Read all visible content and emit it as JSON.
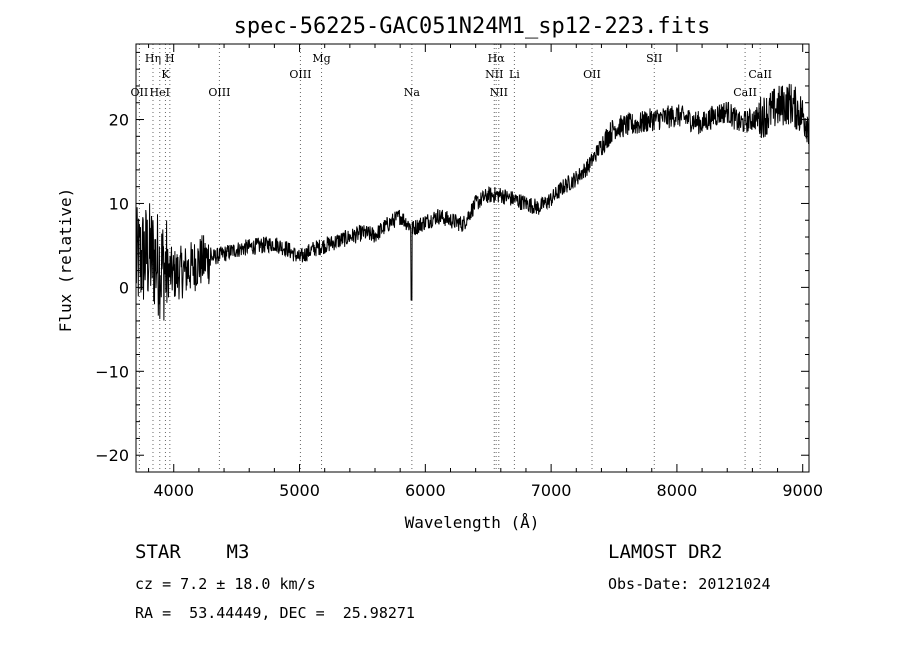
{
  "chart_data": {
    "type": "line",
    "title": "spec-56225-GAC051N24M1_sp12-223.fits",
    "xlabel": "Wavelength (Å)",
    "ylabel": "Flux (relative)",
    "xlim": [
      3700,
      9050
    ],
    "ylim": [
      -22,
      29
    ],
    "xticks": [
      4000,
      5000,
      6000,
      7000,
      8000,
      9000
    ],
    "yticks": [
      -20,
      -10,
      0,
      10,
      20
    ],
    "xtick_labels": [
      "4000",
      "5000",
      "6000",
      "7000",
      "8000",
      "9000"
    ],
    "ytick_labels": [
      "−20",
      "−10",
      "0",
      "10",
      "20"
    ],
    "grid": false,
    "series": [
      {
        "color": "#000000",
        "x": [
          3700,
          3800,
          3900,
          4000,
          4100,
          4200,
          4300,
          4400,
          4500,
          4600,
          4700,
          4800,
          4900,
          5000,
          5100,
          5200,
          5300,
          5400,
          5500,
          5600,
          5700,
          5800,
          5900,
          6000,
          6100,
          6200,
          6300,
          6400,
          6500,
          6600,
          6700,
          6800,
          6900,
          7000,
          7100,
          7200,
          7300,
          7400,
          7500,
          7600,
          7700,
          7800,
          7900,
          8000,
          8100,
          8200,
          8300,
          8400,
          8500,
          8600,
          8700,
          8800,
          8900,
          9000,
          9050
        ],
        "y": [
          3,
          4,
          2.5,
          1.5,
          2,
          3,
          3.5,
          4,
          4.5,
          4.8,
          5,
          5.2,
          4.6,
          3.5,
          4.5,
          5,
          5.5,
          6,
          6.5,
          6.2,
          7.5,
          8.5,
          7,
          7.8,
          8.5,
          8,
          7.5,
          10,
          11,
          11,
          10.5,
          10,
          9.5,
          10.5,
          12,
          13,
          14.5,
          17,
          19,
          19.3,
          19.5,
          20,
          20.2,
          20.5,
          20,
          19.5,
          20.5,
          21,
          19.5,
          20,
          20.5,
          21.5,
          22,
          20.5,
          19.5
        ]
      }
    ],
    "line_markers": [
      {
        "label": "OII",
        "x": 3727,
        "row": 3
      },
      {
        "label": "Hη",
        "x": 3835,
        "row": 1
      },
      {
        "label": "H",
        "x": 3969,
        "row": 1
      },
      {
        "label": "K",
        "x": 3934,
        "row": 2
      },
      {
        "label": "HeI",
        "x": 3889,
        "row": 3
      },
      {
        "label": "OIII",
        "x": 4363,
        "row": 3
      },
      {
        "label": "OIII",
        "x": 5007,
        "row": 2
      },
      {
        "label": "Mg",
        "x": 5175,
        "row": 1
      },
      {
        "label": "Na",
        "x": 5893,
        "row": 3
      },
      {
        "label": "Hα",
        "x": 6563,
        "row": 1
      },
      {
        "label": "NII",
        "x": 6548,
        "row": 2
      },
      {
        "label": "Li",
        "x": 6708,
        "row": 2
      },
      {
        "label": "NII",
        "x": 6584,
        "row": 3
      },
      {
        "label": "OII",
        "x": 7325,
        "row": 2
      },
      {
        "label": "SII",
        "x": 7820,
        "row": 1
      },
      {
        "label": "CaII",
        "x": 8662,
        "row": 2
      },
      {
        "label": "CaII",
        "x": 8542,
        "row": 3
      }
    ]
  },
  "info": {
    "class_line": "STAR    M3",
    "cz_line": "cz = 7.2 ± 18.0 km/s",
    "radec_line": "RA =  53.44449, DEC =  25.98271",
    "survey": "LAMOST DR2",
    "obs_date": "Obs-Date: 20121024"
  }
}
